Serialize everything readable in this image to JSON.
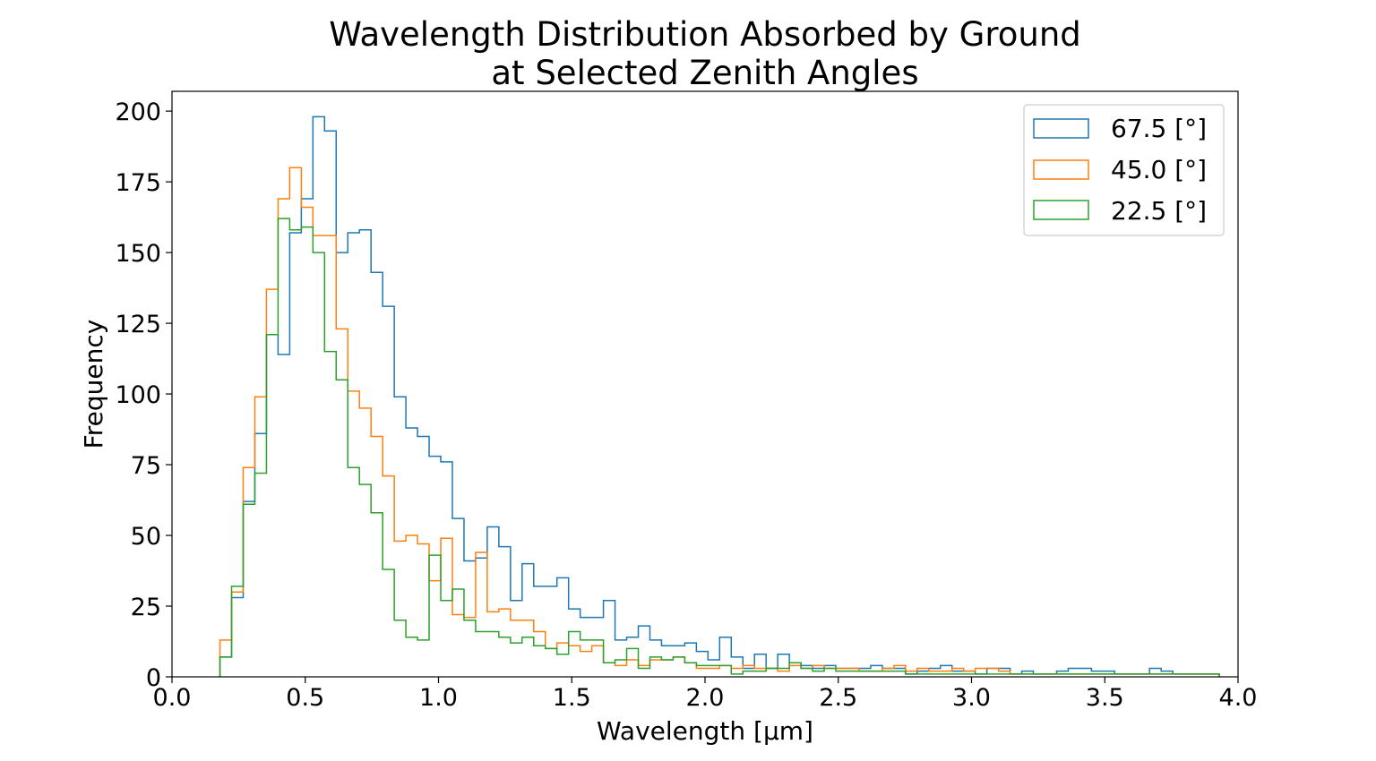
{
  "chart_data": {
    "type": "histogram-step",
    "title": [
      "Wavelength Distribution Absorbed by Ground",
      "at Selected Zenith Angles"
    ],
    "xlabel": "Wavelength [μm]",
    "ylabel": "Frequency",
    "xlim": [
      0.0,
      4.0
    ],
    "ylim": [
      0,
      207
    ],
    "xticks": [
      "0.0",
      "0.5",
      "1.0",
      "1.5",
      "2.0",
      "2.5",
      "3.0",
      "3.5",
      "4.0"
    ],
    "yticks": [
      "0",
      "25",
      "50",
      "75",
      "100",
      "125",
      "150",
      "175",
      "200"
    ],
    "grid": false,
    "legend_position": "upper right",
    "bins": {
      "start": 0.18,
      "width": 0.0436,
      "count": 86
    },
    "series": [
      {
        "name": "67.5 [°]",
        "color": "#1f77b4",
        "values": [
          7,
          28,
          62,
          86,
          121,
          114,
          157,
          169,
          198,
          193,
          150,
          157,
          158,
          143,
          131,
          99,
          88,
          85,
          78,
          76,
          56,
          41,
          42,
          53,
          46,
          27,
          40,
          32,
          32,
          35,
          24,
          21,
          21,
          27,
          13,
          14,
          18,
          13,
          11,
          11,
          12,
          9,
          6,
          14,
          7,
          3,
          8,
          3,
          8,
          5,
          4,
          3,
          4,
          3,
          3,
          3,
          4,
          3,
          3,
          1,
          2,
          3,
          4,
          2,
          2,
          1,
          3,
          3,
          1,
          2,
          1,
          1,
          2,
          3,
          3,
          2,
          2,
          1,
          1,
          1,
          3,
          2,
          1,
          1,
          1,
          1
        ]
      },
      {
        "name": "45.0 [°]",
        "color": "#ff7f0e",
        "values": [
          13,
          30,
          74,
          99,
          137,
          169,
          180,
          166,
          156,
          156,
          123,
          101,
          95,
          85,
          71,
          48,
          50,
          47,
          34,
          49,
          22,
          21,
          44,
          23,
          24,
          20,
          20,
          16,
          10,
          12,
          11,
          9,
          11,
          5,
          4,
          6,
          4,
          6,
          6,
          7,
          5,
          3,
          3,
          4,
          3,
          4,
          3,
          3,
          2,
          4,
          3,
          4,
          3,
          3,
          3,
          2,
          2,
          3,
          4,
          2,
          3,
          2,
          2,
          3,
          2,
          3,
          3,
          2,
          1,
          1,
          1,
          1,
          1,
          1,
          1,
          1,
          1,
          1,
          1,
          1,
          1,
          1,
          1,
          1,
          1,
          1
        ]
      },
      {
        "name": "22.5 [°]",
        "color": "#2ca02c",
        "values": [
          7,
          32,
          61,
          72,
          121,
          162,
          158,
          159,
          150,
          115,
          105,
          74,
          68,
          58,
          38,
          20,
          14,
          13,
          43,
          27,
          31,
          20,
          16,
          16,
          14,
          12,
          14,
          11,
          10,
          8,
          16,
          13,
          13,
          5,
          6,
          10,
          3,
          7,
          6,
          7,
          5,
          4,
          4,
          4,
          1,
          2,
          2,
          3,
          3,
          5,
          3,
          2,
          3,
          2,
          2,
          2,
          2,
          2,
          2,
          1,
          1,
          1,
          1,
          1,
          1,
          1,
          1,
          1,
          1,
          1,
          1,
          1,
          1,
          1,
          1,
          1,
          1,
          1,
          1,
          1,
          1,
          1,
          1,
          1,
          1,
          1
        ]
      }
    ]
  }
}
